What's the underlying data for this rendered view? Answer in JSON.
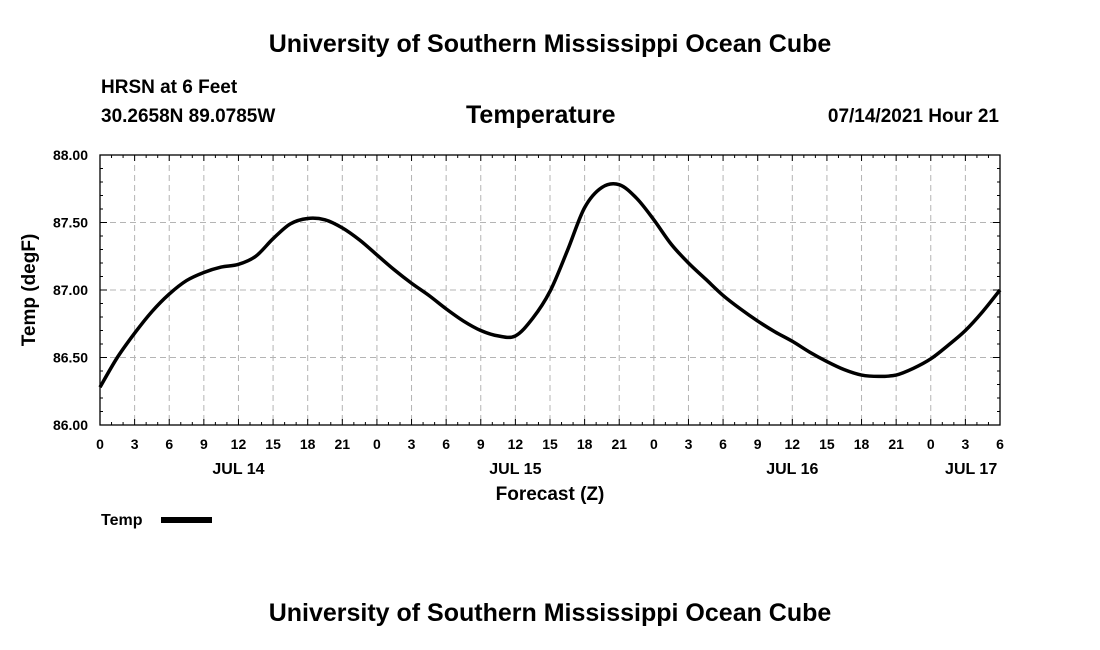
{
  "header": {
    "title": "University of Southern Mississippi Ocean Cube",
    "station": "HRSN at 6 Feet",
    "coords": "30.2658N  89.0785W",
    "variable": "Temperature",
    "datetime": "07/14/2021 Hour 21"
  },
  "footer": {
    "title": "University of Southern Mississippi Ocean Cube"
  },
  "chart_data": {
    "type": "line",
    "xlabel": "Forecast (Z)",
    "ylabel": "Temp (degF)",
    "xlim": [
      0,
      78
    ],
    "ylim": [
      86.0,
      88.0
    ],
    "grid": true,
    "legend_position": "bottom-left",
    "y_ticks": [
      86.0,
      86.5,
      87.0,
      87.5,
      88.0
    ],
    "y_tick_labels": [
      "86.00",
      "86.50",
      "87.00",
      "87.50",
      "88.00"
    ],
    "x_ticks": [
      0,
      3,
      6,
      9,
      12,
      15,
      18,
      21,
      24,
      27,
      30,
      33,
      36,
      39,
      42,
      45,
      48,
      51,
      54,
      57,
      60,
      63,
      66,
      69,
      72,
      75,
      78
    ],
    "x_tick_labels": [
      "0",
      "3",
      "6",
      "9",
      "12",
      "15",
      "18",
      "21",
      "0",
      "3",
      "6",
      "9",
      "12",
      "15",
      "18",
      "21",
      "0",
      "3",
      "6",
      "9",
      "12",
      "15",
      "18",
      "21",
      "0",
      "3",
      "6"
    ],
    "date_labels": [
      {
        "label": "JUL 14",
        "x": 12
      },
      {
        "label": "JUL 15",
        "x": 36
      },
      {
        "label": "JUL 16",
        "x": 60
      },
      {
        "label": "JUL 17",
        "x": 75.5
      }
    ],
    "series": [
      {
        "name": "Temp",
        "color": "#000000",
        "x": [
          0,
          1.5,
          3,
          4.5,
          6,
          7.5,
          9,
          10.5,
          12,
          13.5,
          15,
          16.5,
          18,
          19.5,
          21,
          22.5,
          24,
          25.5,
          27,
          28.5,
          30,
          31.5,
          33,
          34.5,
          36,
          37.5,
          39,
          40.5,
          42,
          43.5,
          45,
          46.5,
          48,
          49.5,
          51,
          52.5,
          54,
          55.5,
          57,
          58.5,
          60,
          61.5,
          63,
          64.5,
          66,
          67.5,
          69,
          70.5,
          72,
          73.5,
          75,
          76.5,
          78
        ],
        "values": [
          86.28,
          86.5,
          86.68,
          86.84,
          86.97,
          87.07,
          87.13,
          87.17,
          87.19,
          87.25,
          87.38,
          87.49,
          87.53,
          87.52,
          87.46,
          87.37,
          87.26,
          87.15,
          87.05,
          86.96,
          86.86,
          86.77,
          86.7,
          86.66,
          86.66,
          86.79,
          86.99,
          87.29,
          87.61,
          87.76,
          87.78,
          87.68,
          87.52,
          87.34,
          87.2,
          87.08,
          86.96,
          86.86,
          86.77,
          86.69,
          86.62,
          86.54,
          86.47,
          86.41,
          86.37,
          86.36,
          86.37,
          86.42,
          86.49,
          86.59,
          86.7,
          86.84,
          87.0
        ]
      }
    ],
    "legend": [
      {
        "label": "Temp",
        "color": "#000000"
      }
    ]
  }
}
